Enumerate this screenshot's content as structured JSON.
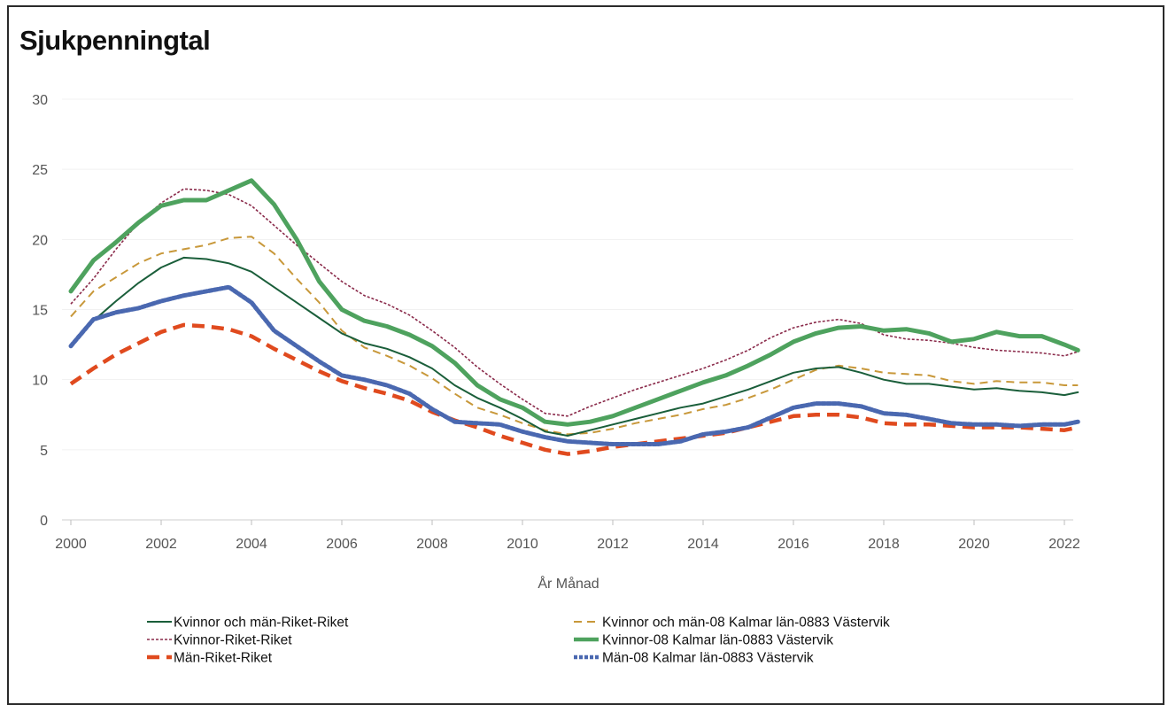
{
  "chart_data": {
    "type": "line",
    "title": "Sjukpenningtal",
    "xlabel": "År Månad",
    "ylabel": "",
    "xlim": [
      2000,
      2022.4
    ],
    "ylim": [
      0,
      30
    ],
    "x_ticks": [
      "2000",
      "2002",
      "2004",
      "2006",
      "2008",
      "2010",
      "2012",
      "2014",
      "2016",
      "2018",
      "2020",
      "2022"
    ],
    "y_ticks": [
      "0",
      "5",
      "10",
      "15",
      "20",
      "25",
      "30"
    ],
    "grid": true,
    "legend_position": "bottom",
    "series": [
      {
        "name": "Kvinnor och män-Riket-Riket",
        "color": "#1a5e3a",
        "style": "solid-thin",
        "x": [
          2000,
          2000.5,
          2001,
          2001.5,
          2002,
          2002.5,
          2003,
          2003.5,
          2004,
          2004.5,
          2005,
          2005.5,
          2006,
          2006.5,
          2007,
          2007.5,
          2008,
          2008.5,
          2009,
          2009.5,
          2010,
          2010.5,
          2011,
          2011.5,
          2012,
          2012.5,
          2013,
          2013.5,
          2014,
          2014.5,
          2015,
          2015.5,
          2016,
          2016.5,
          2017,
          2017.5,
          2018,
          2018.5,
          2019,
          2019.5,
          2020,
          2020.5,
          2021,
          2021.5,
          2022,
          2022.3
        ],
        "y": [
          12.5,
          14.2,
          15.6,
          16.9,
          18,
          18.7,
          18.6,
          18.3,
          17.7,
          16.6,
          15.5,
          14.4,
          13.3,
          12.6,
          12.2,
          11.6,
          10.8,
          9.6,
          8.7,
          8,
          7.2,
          6.3,
          6,
          6.4,
          6.8,
          7.2,
          7.6,
          8,
          8.3,
          8.8,
          9.3,
          9.9,
          10.5,
          10.8,
          10.9,
          10.5,
          10,
          9.7,
          9.7,
          9.5,
          9.3,
          9.4,
          9.2,
          9.1,
          8.9,
          9.1
        ]
      },
      {
        "name": "Kvinnor-Riket-Riket",
        "color": "#8a2a4a",
        "style": "dotted",
        "x": [
          2000,
          2000.5,
          2001,
          2001.5,
          2002,
          2002.5,
          2003,
          2003.5,
          2004,
          2004.5,
          2005,
          2005.5,
          2006,
          2006.5,
          2007,
          2007.5,
          2008,
          2008.5,
          2009,
          2009.5,
          2010,
          2010.5,
          2011,
          2011.5,
          2012,
          2012.5,
          2013,
          2013.5,
          2014,
          2014.5,
          2015,
          2015.5,
          2016,
          2016.5,
          2017,
          2017.5,
          2018,
          2018.5,
          2019,
          2019.5,
          2020,
          2020.5,
          2021,
          2021.5,
          2022,
          2022.3
        ],
        "y": [
          15.4,
          17.2,
          19.3,
          21.2,
          22.6,
          23.6,
          23.5,
          23.2,
          22.4,
          21,
          19.6,
          18.3,
          17,
          16,
          15.4,
          14.6,
          13.5,
          12.3,
          10.9,
          9.7,
          8.6,
          7.6,
          7.4,
          8.1,
          8.7,
          9.3,
          9.8,
          10.3,
          10.8,
          11.4,
          12.1,
          13,
          13.7,
          14.1,
          14.3,
          14,
          13.2,
          12.9,
          12.8,
          12.6,
          12.3,
          12.1,
          12,
          11.9,
          11.7,
          12
        ]
      },
      {
        "name": "Män-Riket-Riket",
        "color": "#e04a1e",
        "style": "dashed-thick",
        "x": [
          2000,
          2000.5,
          2001,
          2001.5,
          2002,
          2002.5,
          2003,
          2003.5,
          2004,
          2004.5,
          2005,
          2005.5,
          2006,
          2006.5,
          2007,
          2007.5,
          2008,
          2008.5,
          2009,
          2009.5,
          2010,
          2010.5,
          2011,
          2011.5,
          2012,
          2012.5,
          2013,
          2013.5,
          2014,
          2014.5,
          2015,
          2015.5,
          2016,
          2016.5,
          2017,
          2017.5,
          2018,
          2018.5,
          2019,
          2019.5,
          2020,
          2020.5,
          2021,
          2021.5,
          2022,
          2022.3
        ],
        "y": [
          9.7,
          10.8,
          11.8,
          12.6,
          13.4,
          13.9,
          13.8,
          13.6,
          13.1,
          12.2,
          11.4,
          10.6,
          9.9,
          9.4,
          9,
          8.5,
          7.7,
          7.1,
          6.6,
          6,
          5.5,
          5,
          4.7,
          4.9,
          5.2,
          5.4,
          5.6,
          5.8,
          6,
          6.2,
          6.6,
          7,
          7.4,
          7.5,
          7.5,
          7.3,
          6.9,
          6.8,
          6.8,
          6.7,
          6.6,
          6.6,
          6.6,
          6.5,
          6.4,
          6.6
        ]
      },
      {
        "name": "Kvinnor och män-08 Kalmar län-0883 Västervik",
        "color": "#c8983a",
        "style": "dashed-thin",
        "x": [
          2000,
          2000.5,
          2001,
          2001.5,
          2002,
          2002.5,
          2003,
          2003.5,
          2004,
          2004.5,
          2005,
          2005.5,
          2006,
          2006.5,
          2007,
          2007.5,
          2008,
          2008.5,
          2009,
          2009.5,
          2010,
          2010.5,
          2011,
          2011.5,
          2012,
          2012.5,
          2013,
          2013.5,
          2014,
          2014.5,
          2015,
          2015.5,
          2016,
          2016.5,
          2017,
          2017.5,
          2018,
          2018.5,
          2019,
          2019.5,
          2020,
          2020.5,
          2021,
          2021.5,
          2022,
          2022.3
        ],
        "y": [
          14.5,
          16.3,
          17.3,
          18.3,
          19,
          19.3,
          19.6,
          20.1,
          20.2,
          19,
          17.2,
          15.5,
          13.5,
          12.3,
          11.7,
          11,
          10.1,
          9,
          8,
          7.5,
          6.9,
          6.4,
          6.1,
          6.2,
          6.5,
          6.9,
          7.2,
          7.5,
          7.9,
          8.2,
          8.7,
          9.3,
          10,
          10.7,
          11,
          10.8,
          10.5,
          10.4,
          10.3,
          9.9,
          9.7,
          9.9,
          9.8,
          9.8,
          9.6,
          9.6
        ]
      },
      {
        "name": "Kvinnor-08 Kalmar län-0883 Västervik",
        "color": "#4ea25e",
        "style": "solid-thick",
        "x": [
          2000,
          2000.5,
          2001,
          2001.5,
          2002,
          2002.5,
          2003,
          2003.5,
          2004,
          2004.5,
          2005,
          2005.5,
          2006,
          2006.5,
          2007,
          2007.5,
          2008,
          2008.5,
          2009,
          2009.5,
          2010,
          2010.5,
          2011,
          2011.5,
          2012,
          2012.5,
          2013,
          2013.5,
          2014,
          2014.5,
          2015,
          2015.5,
          2016,
          2016.5,
          2017,
          2017.5,
          2018,
          2018.5,
          2019,
          2019.5,
          2020,
          2020.5,
          2021,
          2021.5,
          2022,
          2022.3
        ],
        "y": [
          16.3,
          18.5,
          19.8,
          21.2,
          22.4,
          22.8,
          22.8,
          23.5,
          24.2,
          22.5,
          20,
          17,
          15,
          14.2,
          13.8,
          13.2,
          12.4,
          11.2,
          9.6,
          8.6,
          8,
          7,
          6.8,
          7,
          7.4,
          8,
          8.6,
          9.2,
          9.8,
          10.3,
          11,
          11.8,
          12.7,
          13.3,
          13.7,
          13.8,
          13.5,
          13.6,
          13.3,
          12.7,
          12.9,
          13.4,
          13.1,
          13.1,
          12.5,
          12.1
        ]
      },
      {
        "name": "Män-08 Kalmar län-0883 Västervik",
        "color": "#4a68b0",
        "style": "dotted-thick",
        "x": [
          2000,
          2000.5,
          2001,
          2001.5,
          2002,
          2002.5,
          2003,
          2003.5,
          2004,
          2004.5,
          2005,
          2005.5,
          2006,
          2006.5,
          2007,
          2007.5,
          2008,
          2008.5,
          2009,
          2009.5,
          2010,
          2010.5,
          2011,
          2011.5,
          2012,
          2012.5,
          2013,
          2013.5,
          2014,
          2014.5,
          2015,
          2015.5,
          2016,
          2016.5,
          2017,
          2017.5,
          2018,
          2018.5,
          2019,
          2019.5,
          2020,
          2020.5,
          2021,
          2021.5,
          2022,
          2022.3
        ],
        "y": [
          12.4,
          14.3,
          14.8,
          15.1,
          15.6,
          16,
          16.3,
          16.6,
          15.5,
          13.5,
          12.4,
          11.3,
          10.3,
          10,
          9.6,
          9,
          7.9,
          7,
          6.9,
          6.8,
          6.3,
          5.9,
          5.6,
          5.5,
          5.4,
          5.4,
          5.4,
          5.6,
          6.1,
          6.3,
          6.6,
          7.3,
          8,
          8.3,
          8.3,
          8.1,
          7.6,
          7.5,
          7.2,
          6.9,
          6.8,
          6.8,
          6.7,
          6.8,
          6.8,
          7
        ]
      }
    ]
  }
}
